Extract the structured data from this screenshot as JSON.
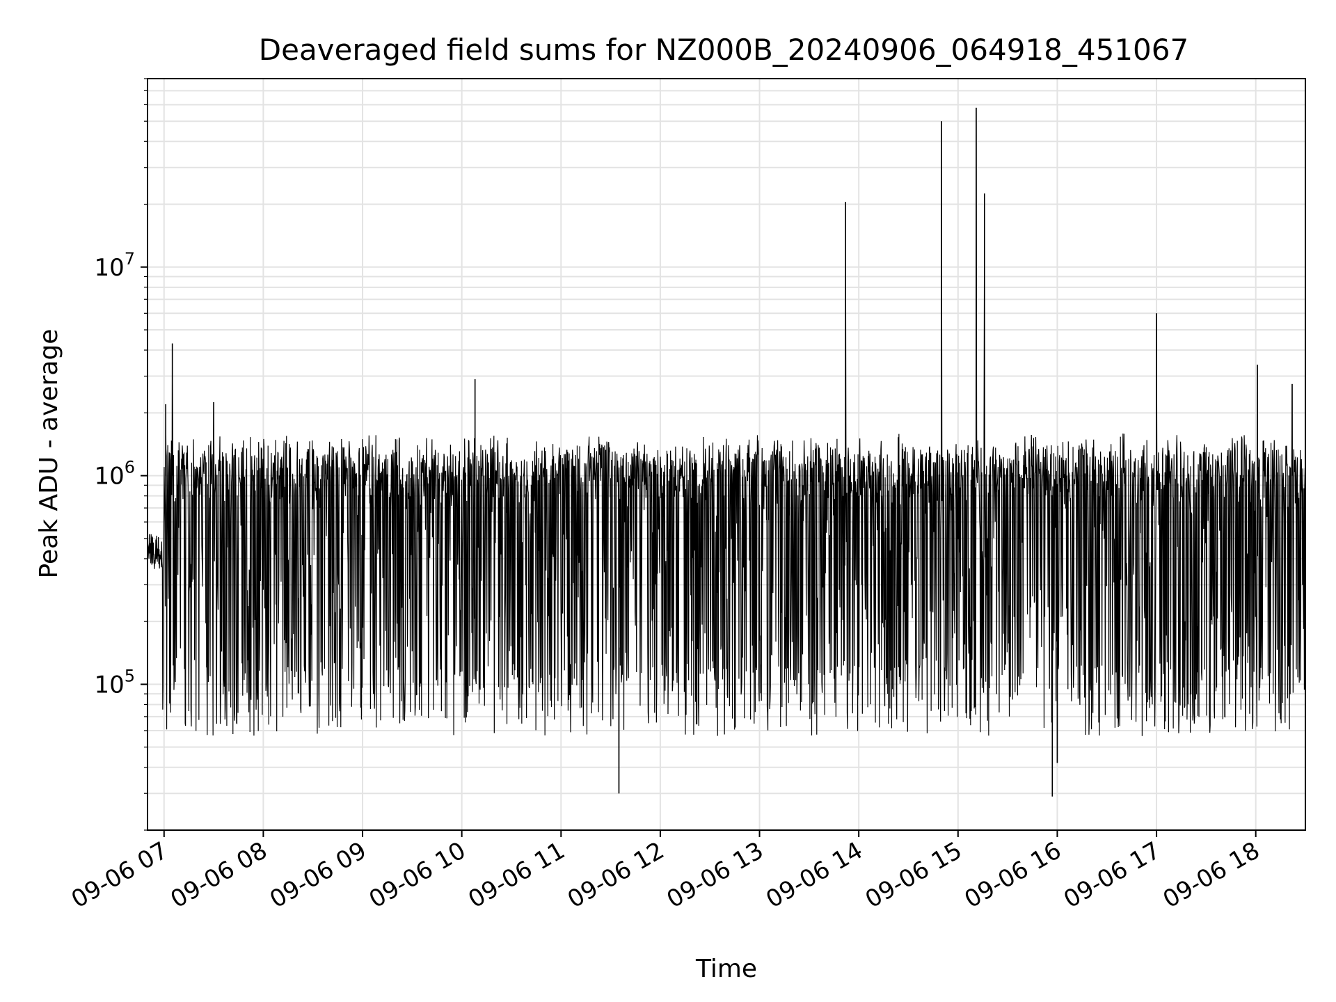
{
  "chart_data": {
    "type": "line",
    "title": "Deaveraged field sums for NZ000B_20240906_064918_451067",
    "xlabel": "Time",
    "ylabel": "Peak ADU - average",
    "yscale": "log",
    "xlim": [
      "2024-09-06T06:50:00",
      "2024-09-06T18:30:00"
    ],
    "ylim": [
      20000,
      80000000
    ],
    "grid": true,
    "line_color": "#000000",
    "x_ticks": [
      "09-06 07",
      "09-06 08",
      "09-06 09",
      "09-06 10",
      "09-06 11",
      "09-06 12",
      "09-06 13",
      "09-06 14",
      "09-06 15",
      "09-06 16",
      "09-06 17",
      "09-06 18"
    ],
    "y_ticks": [
      {
        "value": 100000,
        "base": "10",
        "exp": "5"
      },
      {
        "value": 1000000,
        "base": "10",
        "exp": "6"
      },
      {
        "value": 10000000,
        "base": "10",
        "exp": "7"
      }
    ],
    "series": [
      {
        "name": "",
        "band": {
          "comment_free": true,
          "upper_typical": 1400000,
          "lower_typical": 100000,
          "start_level": 420000
        },
        "spikes": [
          {
            "x": "2024-09-06T07:05:00",
            "y": 4300000
          },
          {
            "x": "2024-09-06T07:01:00",
            "y": 2200000
          },
          {
            "x": "2024-09-06T07:30:00",
            "y": 2250000
          },
          {
            "x": "2024-09-06T10:08:00",
            "y": 2900000
          },
          {
            "x": "2024-09-06T13:52:00",
            "y": 20500000
          },
          {
            "x": "2024-09-06T14:50:00",
            "y": 50000000
          },
          {
            "x": "2024-09-06T15:11:00",
            "y": 58000000
          },
          {
            "x": "2024-09-06T15:16:00",
            "y": 22500000
          },
          {
            "x": "2024-09-06T17:00:00",
            "y": 6000000
          },
          {
            "x": "2024-09-06T18:01:00",
            "y": 3400000
          },
          {
            "x": "2024-09-06T18:22:00",
            "y": 2750000
          }
        ],
        "dips": [
          {
            "x": "2024-09-06T11:35:00",
            "y": 30000
          },
          {
            "x": "2024-09-06T15:57:00",
            "y": 29000
          },
          {
            "x": "2024-09-06T16:00:00",
            "y": 42000
          }
        ]
      }
    ]
  }
}
